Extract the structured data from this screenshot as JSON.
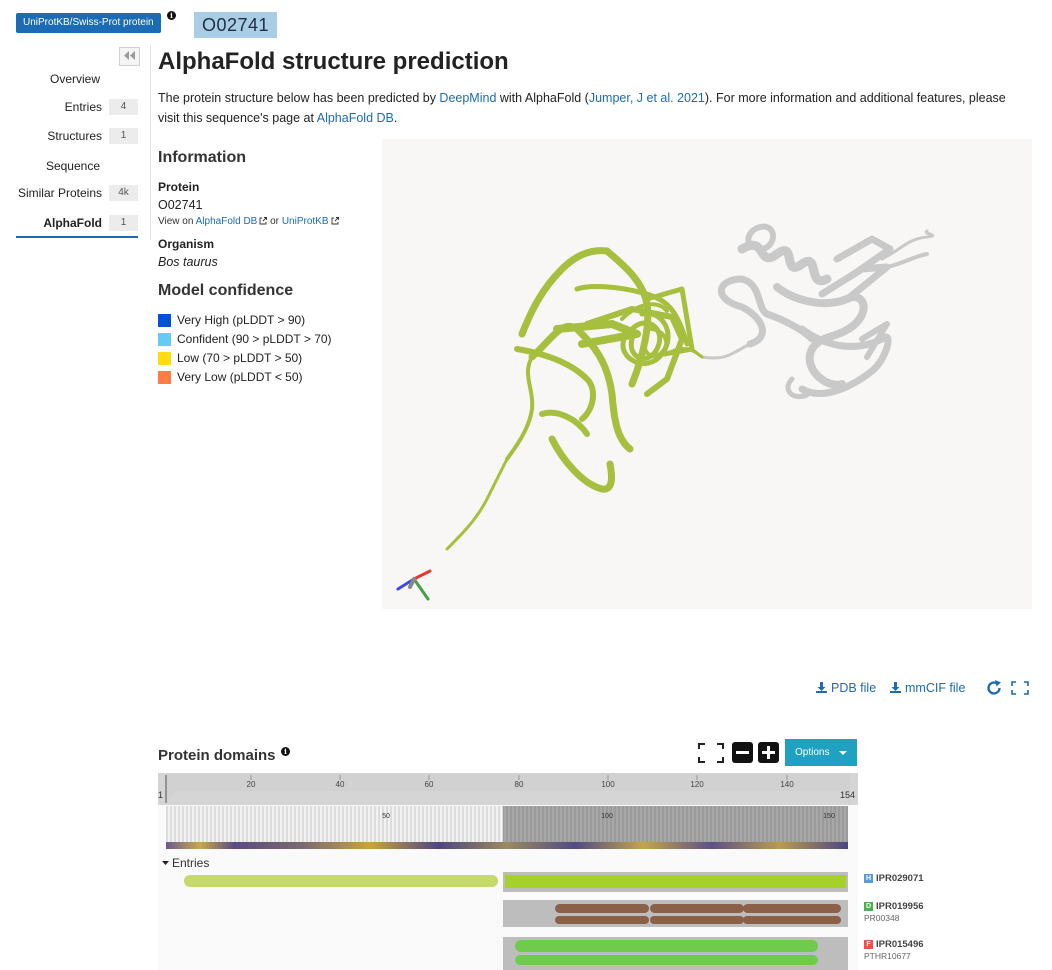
{
  "header": {
    "db_badge": "UniProtKB/Swiss-Prot protein",
    "info_symbol": "i",
    "accession": "O02741"
  },
  "sidebar": {
    "items": [
      {
        "label": "Overview",
        "count": ""
      },
      {
        "label": "Entries",
        "count": "4"
      },
      {
        "label": "Structures",
        "count": "1"
      },
      {
        "label": "Sequence",
        "count": ""
      },
      {
        "label": "Similar Proteins",
        "count": "4k"
      },
      {
        "label": "AlphaFold",
        "count": "1",
        "active": true
      }
    ]
  },
  "main": {
    "title": "AlphaFold structure prediction",
    "intro": {
      "part1": "The protein structure below has been predicted by ",
      "deepmind": "DeepMind",
      "part2": " with AlphaFold (",
      "citation": "Jumper, J et al. 2021",
      "part3": "). For more information and additional features, please visit this sequence's page at ",
      "afdb": "AlphaFold DB",
      "part4": "."
    }
  },
  "information": {
    "heading": "Information",
    "protein_label": "Protein",
    "protein_value": "O02741",
    "view_on": "View on",
    "link_afdb": "AlphaFold DB",
    "or": "or",
    "link_uniprot": "UniProtKB",
    "organism_label": "Organism",
    "organism_value": "Bos taurus"
  },
  "confidence": {
    "heading": "Model confidence",
    "legend": [
      {
        "label": "Very High (pLDDT > 90)",
        "color": "#0053d6"
      },
      {
        "label": "Confident (90 > pLDDT > 70)",
        "color": "#65cbf3"
      },
      {
        "label": "Low (70 > pLDDT > 50)",
        "color": "#ffdb13"
      },
      {
        "label": "Very Low (pLDDT < 50)",
        "color": "#ff7d45"
      }
    ]
  },
  "viewer": {
    "structure_color": "#a6bf3e",
    "secondary_color": "#cfcfcf"
  },
  "downloads": {
    "pdb": "PDB file",
    "mmcif": "mmCIF file"
  },
  "domains": {
    "heading": "Protein domains",
    "options_label": "Options",
    "ruler": {
      "start": "1",
      "end": "154",
      "ticks": [
        "20",
        "40",
        "60",
        "80",
        "100",
        "120",
        "140"
      ],
      "sub_ticks": [
        "50",
        "100",
        "150"
      ]
    },
    "entries_toggle": "Entries",
    "entries": [
      {
        "accession": "IPR029071",
        "type_letter": "H",
        "type_color": "#5b9bd5",
        "member": ""
      },
      {
        "accession": "IPR019956",
        "type_letter": "D",
        "type_color": "#4cb050",
        "member": "PR00348"
      },
      {
        "accession": "IPR015496",
        "type_letter": "F",
        "type_color": "#e9524a",
        "member": "PTHR10677"
      }
    ]
  }
}
